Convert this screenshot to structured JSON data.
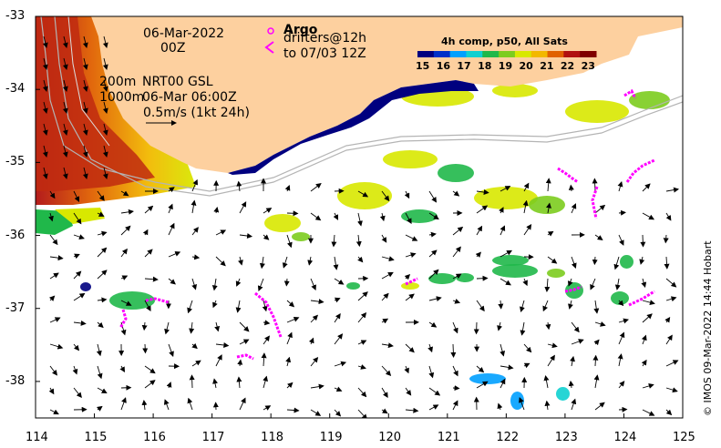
{
  "map": {
    "date": "06-Mar-2022",
    "time": "00Z",
    "legend_argo": "Argo",
    "legend_drifters": "drifters@12h",
    "legend_drifters_to": "to 07/03 12Z",
    "contour_200": "200m",
    "contour_1000": "1000m",
    "product": "NRT00 GSL",
    "product_time": "06-Mar 06:00Z",
    "vector_scale": "0.5m/s (1kt 24h)",
    "credit": "© IMOS 09-Mar-2022 14:44 Hobart",
    "colorbar": {
      "title": "4h comp, p50, All Sats",
      "ticks": [
        "15",
        "16",
        "17",
        "18",
        "19",
        "20",
        "21",
        "22",
        "23"
      ],
      "colors": [
        "#00007f",
        "#0030c8",
        "#00a0ff",
        "#10d0d0",
        "#20b84a",
        "#7ccc1e",
        "#d8e800",
        "#f2b800",
        "#e06000",
        "#b01010",
        "#7f0000"
      ]
    },
    "axes": {
      "x_ticks": [
        "114",
        "115",
        "116",
        "117",
        "118",
        "119",
        "120",
        "121",
        "122",
        "123",
        "124",
        "125"
      ],
      "y_ticks": [
        "-33",
        "-34",
        "-35",
        "-36",
        "-37",
        "-38"
      ],
      "xlim": [
        114,
        125
      ],
      "ylim": [
        -38.5,
        -33
      ]
    },
    "colors": {
      "land": "#fdd09f",
      "shelf_contour": "#b4b4b4",
      "drifter_track": "#ff00ff",
      "argo_marker": "#ff00ff",
      "coastal_sst": "#00007f"
    }
  }
}
